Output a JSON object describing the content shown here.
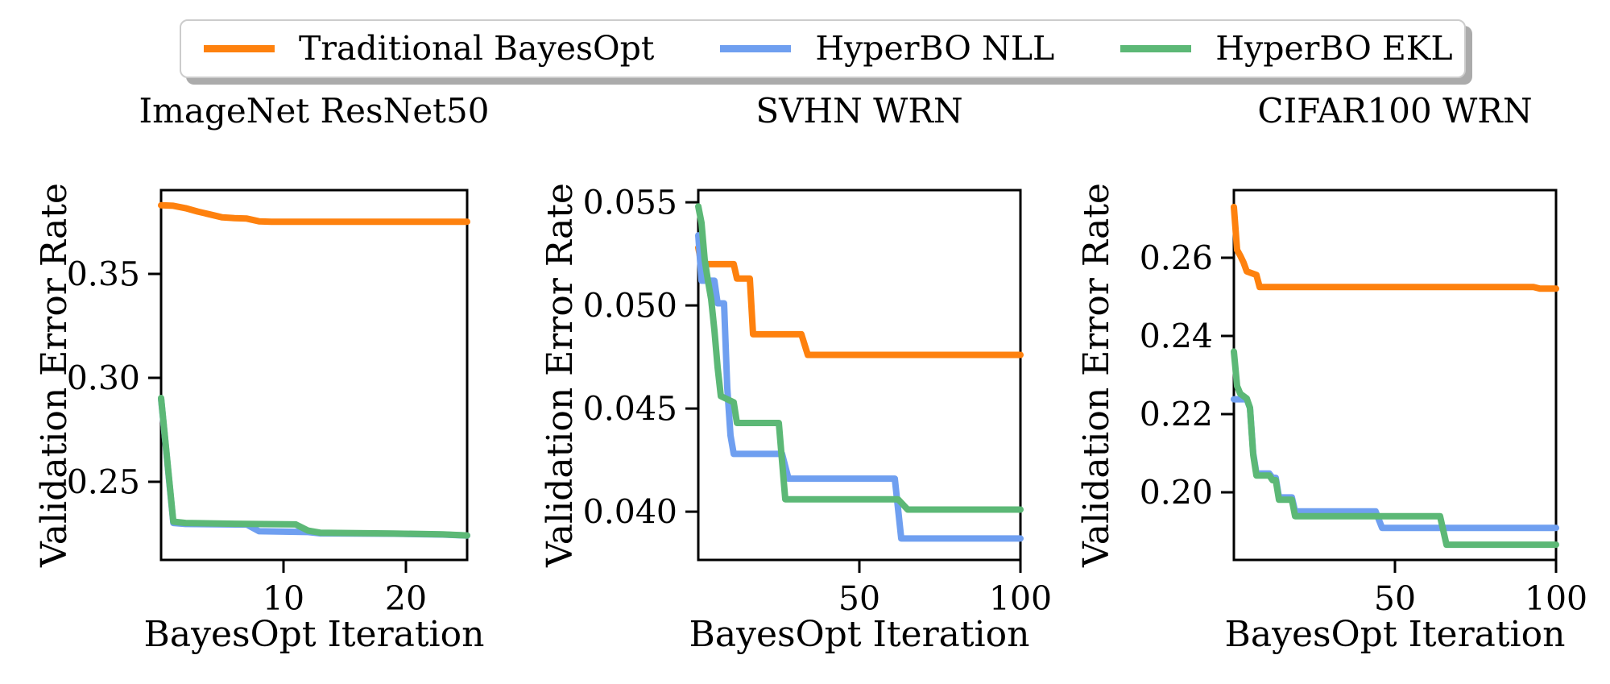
{
  "legend": {
    "items": [
      {
        "label": "Traditional BayesOpt",
        "color": "#fe810e"
      },
      {
        "label": "HyperBO NLL",
        "color": "#6f9ff0"
      },
      {
        "label": "HyperBO EKL",
        "color": "#5cb876"
      }
    ]
  },
  "chart_data": [
    {
      "type": "line",
      "title": "ImageNet ResNet50",
      "xlabel": "BayesOpt Iteration",
      "ylabel": "Validation Error Rate",
      "xlim": [
        0,
        25
      ],
      "ylim": [
        0.2124,
        0.3903
      ],
      "xticks": [
        {
          "pos": 10,
          "label": "10"
        },
        {
          "pos": 20,
          "label": "20"
        }
      ],
      "yticks": [
        {
          "pos": 0.25,
          "label": "0.25"
        },
        {
          "pos": 0.3,
          "label": "0.30"
        },
        {
          "pos": 0.35,
          "label": "0.35"
        }
      ],
      "grid": false,
      "series": [
        {
          "name": "Traditional BayesOpt",
          "color": "#fe810e",
          "points": [
            [
              0,
              0.383
            ],
            [
              1,
              0.3828
            ],
            [
              2,
              0.3816
            ],
            [
              3,
              0.38
            ],
            [
              4,
              0.3786
            ],
            [
              5,
              0.3772
            ],
            [
              6,
              0.3768
            ],
            [
              7,
              0.3766
            ],
            [
              8,
              0.3753
            ],
            [
              9,
              0.3751
            ],
            [
              25,
              0.3751
            ]
          ]
        },
        {
          "name": "HyperBO NLL",
          "color": "#6f9ff0",
          "points": [
            [
              0,
              0.29
            ],
            [
              1,
              0.2302
            ],
            [
              2,
              0.2297
            ],
            [
              7,
              0.2294
            ],
            [
              8,
              0.2262
            ],
            [
              12,
              0.2258
            ],
            [
              13,
              0.2252
            ],
            [
              19,
              0.225
            ],
            [
              23,
              0.2246
            ],
            [
              25,
              0.2241
            ]
          ]
        },
        {
          "name": "HyperBO EKL",
          "color": "#5cb876",
          "points": [
            [
              0,
              0.2903
            ],
            [
              1,
              0.2308
            ],
            [
              2,
              0.2302
            ],
            [
              6,
              0.2298
            ],
            [
              11,
              0.2295
            ],
            [
              12,
              0.2265
            ],
            [
              13,
              0.2255
            ],
            [
              19,
              0.2251
            ],
            [
              23,
              0.2247
            ],
            [
              25,
              0.2242
            ]
          ]
        }
      ]
    },
    {
      "type": "line",
      "title": "SVHN WRN",
      "xlabel": "BayesOpt Iteration",
      "ylabel": "Validation Error Rate",
      "xlim": [
        0,
        100
      ],
      "ylim": [
        0.03766,
        0.05559
      ],
      "xticks": [
        {
          "pos": 50,
          "label": "50"
        },
        {
          "pos": 100,
          "label": "100"
        }
      ],
      "yticks": [
        {
          "pos": 0.04,
          "label": "0.040"
        },
        {
          "pos": 0.045,
          "label": "0.045"
        },
        {
          "pos": 0.05,
          "label": "0.050"
        },
        {
          "pos": 0.055,
          "label": "0.055"
        }
      ],
      "grid": false,
      "series": [
        {
          "name": "Traditional BayesOpt",
          "color": "#fe810e",
          "points": [
            [
              0,
              0.0528
            ],
            [
              1,
              0.052
            ],
            [
              11,
              0.052
            ],
            [
              12,
              0.0513
            ],
            [
              16,
              0.0513
            ],
            [
              17,
              0.0486
            ],
            [
              32,
              0.0486
            ],
            [
              34,
              0.0476
            ],
            [
              100,
              0.0476
            ]
          ]
        },
        {
          "name": "HyperBO NLL",
          "color": "#6f9ff0",
          "points": [
            [
              0,
              0.0534
            ],
            [
              1,
              0.0512
            ],
            [
              5,
              0.0512
            ],
            [
              6,
              0.0501
            ],
            [
              8,
              0.0501
            ],
            [
              9,
              0.046
            ],
            [
              10,
              0.0437
            ],
            [
              11,
              0.0428
            ],
            [
              26,
              0.0428
            ],
            [
              28,
              0.0416
            ],
            [
              61,
              0.0416
            ],
            [
              63,
              0.0387
            ],
            [
              100,
              0.0387
            ]
          ]
        },
        {
          "name": "HyperBO EKL",
          "color": "#5cb876",
          "points": [
            [
              0,
              0.0548
            ],
            [
              1,
              0.054
            ],
            [
              2,
              0.0522
            ],
            [
              3,
              0.0512
            ],
            [
              4,
              0.0503
            ],
            [
              5,
              0.0488
            ],
            [
              6,
              0.047
            ],
            [
              7,
              0.0456
            ],
            [
              11,
              0.0453
            ],
            [
              12,
              0.0443
            ],
            [
              25,
              0.0443
            ],
            [
              27,
              0.0406
            ],
            [
              62,
              0.0406
            ],
            [
              65,
              0.0401
            ],
            [
              100,
              0.0401
            ]
          ]
        }
      ]
    },
    {
      "type": "line",
      "title": "CIFAR100 WRN",
      "xlabel": "BayesOpt Iteration",
      "ylabel": "Validation Error Rate",
      "xlim": [
        0,
        100
      ],
      "ylim": [
        0.1827,
        0.2773
      ],
      "xticks": [
        {
          "pos": 50,
          "label": "50"
        },
        {
          "pos": 100,
          "label": "100"
        }
      ],
      "yticks": [
        {
          "pos": 0.2,
          "label": "0.20"
        },
        {
          "pos": 0.22,
          "label": "0.22"
        },
        {
          "pos": 0.24,
          "label": "0.24"
        },
        {
          "pos": 0.26,
          "label": "0.26"
        }
      ],
      "grid": false,
      "series": [
        {
          "name": "Traditional BayesOpt",
          "color": "#fe810e",
          "points": [
            [
              0,
              0.273
            ],
            [
              1,
              0.262
            ],
            [
              2,
              0.2605
            ],
            [
              3,
              0.2588
            ],
            [
              4,
              0.2565
            ],
            [
              7,
              0.2556
            ],
            [
              8,
              0.2525
            ],
            [
              93,
              0.2525
            ],
            [
              95,
              0.2521
            ],
            [
              100,
              0.2521
            ]
          ]
        },
        {
          "name": "HyperBO NLL",
          "color": "#6f9ff0",
          "points": [
            [
              0,
              0.2238
            ],
            [
              4,
              0.2238
            ],
            [
              5,
              0.2216
            ],
            [
              6,
              0.21
            ],
            [
              7,
              0.2048
            ],
            [
              11,
              0.2048
            ],
            [
              12,
              0.2037
            ],
            [
              13,
              0.2037
            ],
            [
              14,
              0.1987
            ],
            [
              18,
              0.1987
            ],
            [
              19,
              0.1951
            ],
            [
              44,
              0.1951
            ],
            [
              46,
              0.1909
            ],
            [
              100,
              0.1909
            ]
          ]
        },
        {
          "name": "HyperBO EKL",
          "color": "#5cb876",
          "points": [
            [
              0,
              0.236
            ],
            [
              1,
              0.2272
            ],
            [
              2,
              0.2252
            ],
            [
              4,
              0.224
            ],
            [
              5,
              0.2216
            ],
            [
              6,
              0.2096
            ],
            [
              7,
              0.2043
            ],
            [
              11,
              0.2043
            ],
            [
              12,
              0.2031
            ],
            [
              13,
              0.2031
            ],
            [
              14,
              0.1981
            ],
            [
              18,
              0.1981
            ],
            [
              19,
              0.1939
            ],
            [
              64,
              0.1939
            ],
            [
              66,
              0.1866
            ],
            [
              100,
              0.1866
            ]
          ]
        }
      ]
    }
  ]
}
